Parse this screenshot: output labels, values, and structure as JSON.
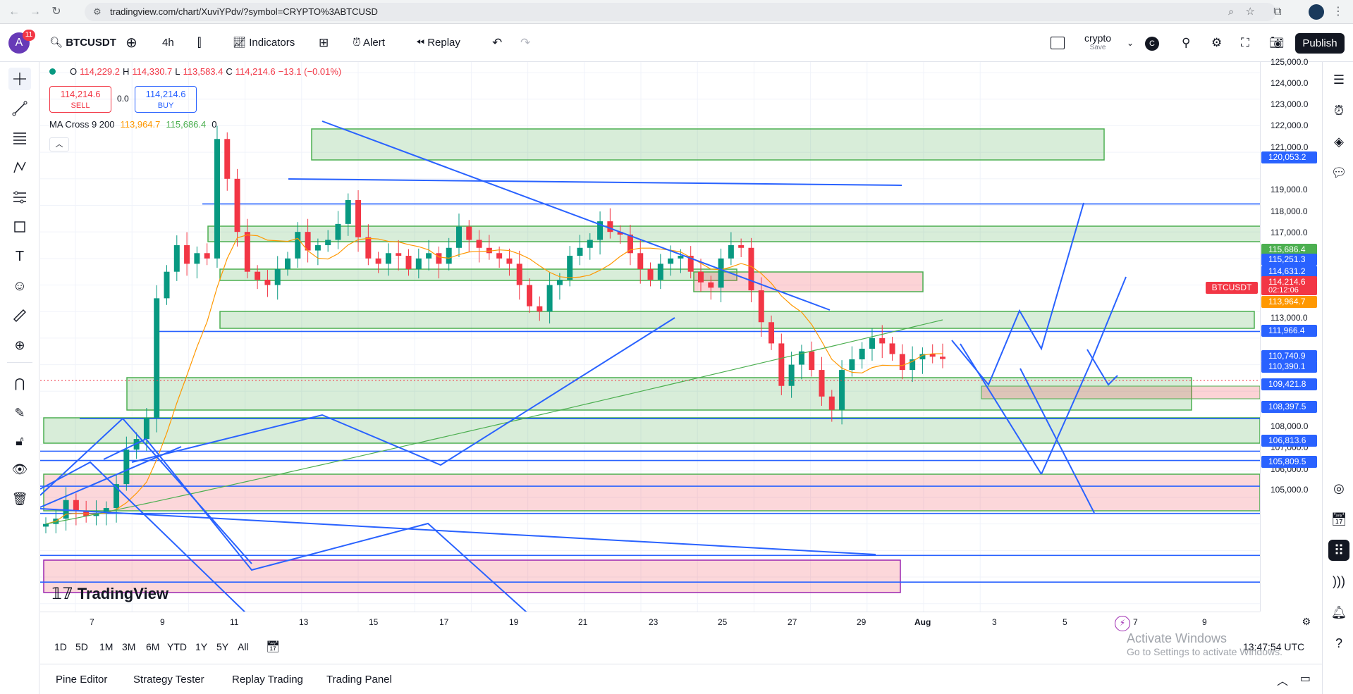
{
  "browser": {
    "url": "tradingview.com/chart/XuviYPdv/?symbol=CRYPTO%3ABTCUSD"
  },
  "toolbar": {
    "avatar_letter": "A",
    "notification_count": "11",
    "symbol": "BTCUSDT",
    "interval": "4h",
    "indicators_label": "Indicators",
    "alert_label": "Alert",
    "replay_label": "Replay",
    "layout_name": "crypto",
    "layout_status": "Save",
    "layout_badge": "C",
    "publish_label": "Publish"
  },
  "legend": {
    "open_label": "O",
    "open": "114,229.2",
    "high_label": "H",
    "high": "114,330.7",
    "low_label": "L",
    "low": "113,583.4",
    "close_label": "C",
    "close": "114,214.6",
    "change": "−13.1 (−0.01%)",
    "sell_price": "114,214.6",
    "sell_label": "SELL",
    "spread": "0.0",
    "buy_price": "114,214.6",
    "buy_label": "BUY",
    "ma_name": "MA Cross 9 200",
    "ma_fast": "113,964.7",
    "ma_slow": "115,686.4",
    "ma_extra": "0"
  },
  "price_axis": {
    "labels": [
      "125,000.0",
      "124,000.0",
      "123,000.0",
      "122,000.0",
      "121,000.0",
      "119,000.0",
      "118,000.0",
      "117,000.0",
      "116,000.0",
      "113,000.0",
      "111,000.0",
      "109,000.0",
      "108,000.0",
      "107,000.0",
      "106,000.0",
      "105,000.0"
    ],
    "badges": [
      {
        "text": "115,686.4",
        "color": "#4caf50"
      },
      {
        "text": "115,251.3",
        "color": "#2962ff"
      },
      {
        "text": "114,631.2",
        "color": "#2962ff"
      },
      {
        "text": "114,214.6",
        "color": "#f23645"
      },
      {
        "text": "02:12:06",
        "color": "#f23645"
      },
      {
        "text": "113,964.7",
        "color": "#ff9800"
      },
      {
        "text": "120,053.2",
        "color": "#2962ff"
      },
      {
        "text": "111,966.4",
        "color": "#2962ff"
      },
      {
        "text": "110,740.9",
        "color": "#2962ff"
      },
      {
        "text": "110,390.1",
        "color": "#2962ff"
      },
      {
        "text": "109,421.8",
        "color": "#2962ff"
      },
      {
        "text": "108,397.5",
        "color": "#2962ff"
      },
      {
        "text": "106,813.6",
        "color": "#2962ff"
      },
      {
        "text": "105,809.5",
        "color": "#2962ff"
      }
    ],
    "symbol_tag": "BTCUSDT"
  },
  "time_axis": {
    "labels": [
      "7",
      "9",
      "11",
      "13",
      "15",
      "17",
      "19",
      "21",
      "23",
      "25",
      "27",
      "29",
      "Aug",
      "3",
      "5",
      "7",
      "9"
    ]
  },
  "range_bar": {
    "ranges": [
      "1D",
      "5D",
      "1M",
      "3M",
      "6M",
      "YTD",
      "1Y",
      "5Y",
      "All"
    ],
    "clock": "13:47:54 UTC"
  },
  "bottom_panel": {
    "tabs": [
      "Pine Editor",
      "Strategy Tester",
      "Replay Trading",
      "Trading Panel"
    ]
  },
  "watermark": "TradingView",
  "windows_notice": {
    "title": "Activate Windows",
    "subtitle": "Go to Settings to activate Windows."
  },
  "chart_data": {
    "type": "candlestick",
    "symbol": "BTCUSDT",
    "interval": "4h",
    "ylim": [
      104700,
      125400
    ],
    "x_ticks": [
      "7",
      "9",
      "11",
      "13",
      "15",
      "17",
      "19",
      "21",
      "23",
      "25",
      "27",
      "29",
      "Aug",
      "3",
      "5",
      "7",
      "9"
    ],
    "candles_close_path": [
      108000,
      108200,
      108900,
      108500,
      108300,
      108400,
      108600,
      109500,
      110800,
      111200,
      112000,
      116500,
      117500,
      118500,
      117800,
      118200,
      118000,
      122500,
      121000,
      119000,
      117500,
      117200,
      117000,
      117600,
      118000,
      119000,
      118300,
      118500,
      118700,
      119300,
      120200,
      118800,
      118000,
      117800,
      118200,
      118100,
      117600,
      118000,
      118200,
      117800,
      118400,
      119200,
      118700,
      118400,
      118200,
      118000,
      117800,
      117000,
      116200,
      116000,
      117000,
      117200,
      118100,
      118400,
      118700,
      119400,
      119000,
      118900,
      118200,
      117600,
      117200,
      117800,
      118000,
      118100,
      117500,
      117100,
      116900,
      118000,
      118500,
      118400,
      116800,
      115600,
      114800,
      113200,
      114000,
      114500,
      113800,
      112800,
      112300,
      113800,
      114200,
      114600,
      115000,
      114800,
      114400,
      113800,
      114200,
      114400,
      114300,
      114214.6
    ],
    "ma_fast_last": 113964.7,
    "ma_slow_last": 115686.4,
    "horizontal_levels": [
      120053.2,
      115251.3,
      111966.4,
      110740.9,
      110390.1,
      109421.8,
      108397.5,
      106813.6,
      105809.5
    ]
  }
}
